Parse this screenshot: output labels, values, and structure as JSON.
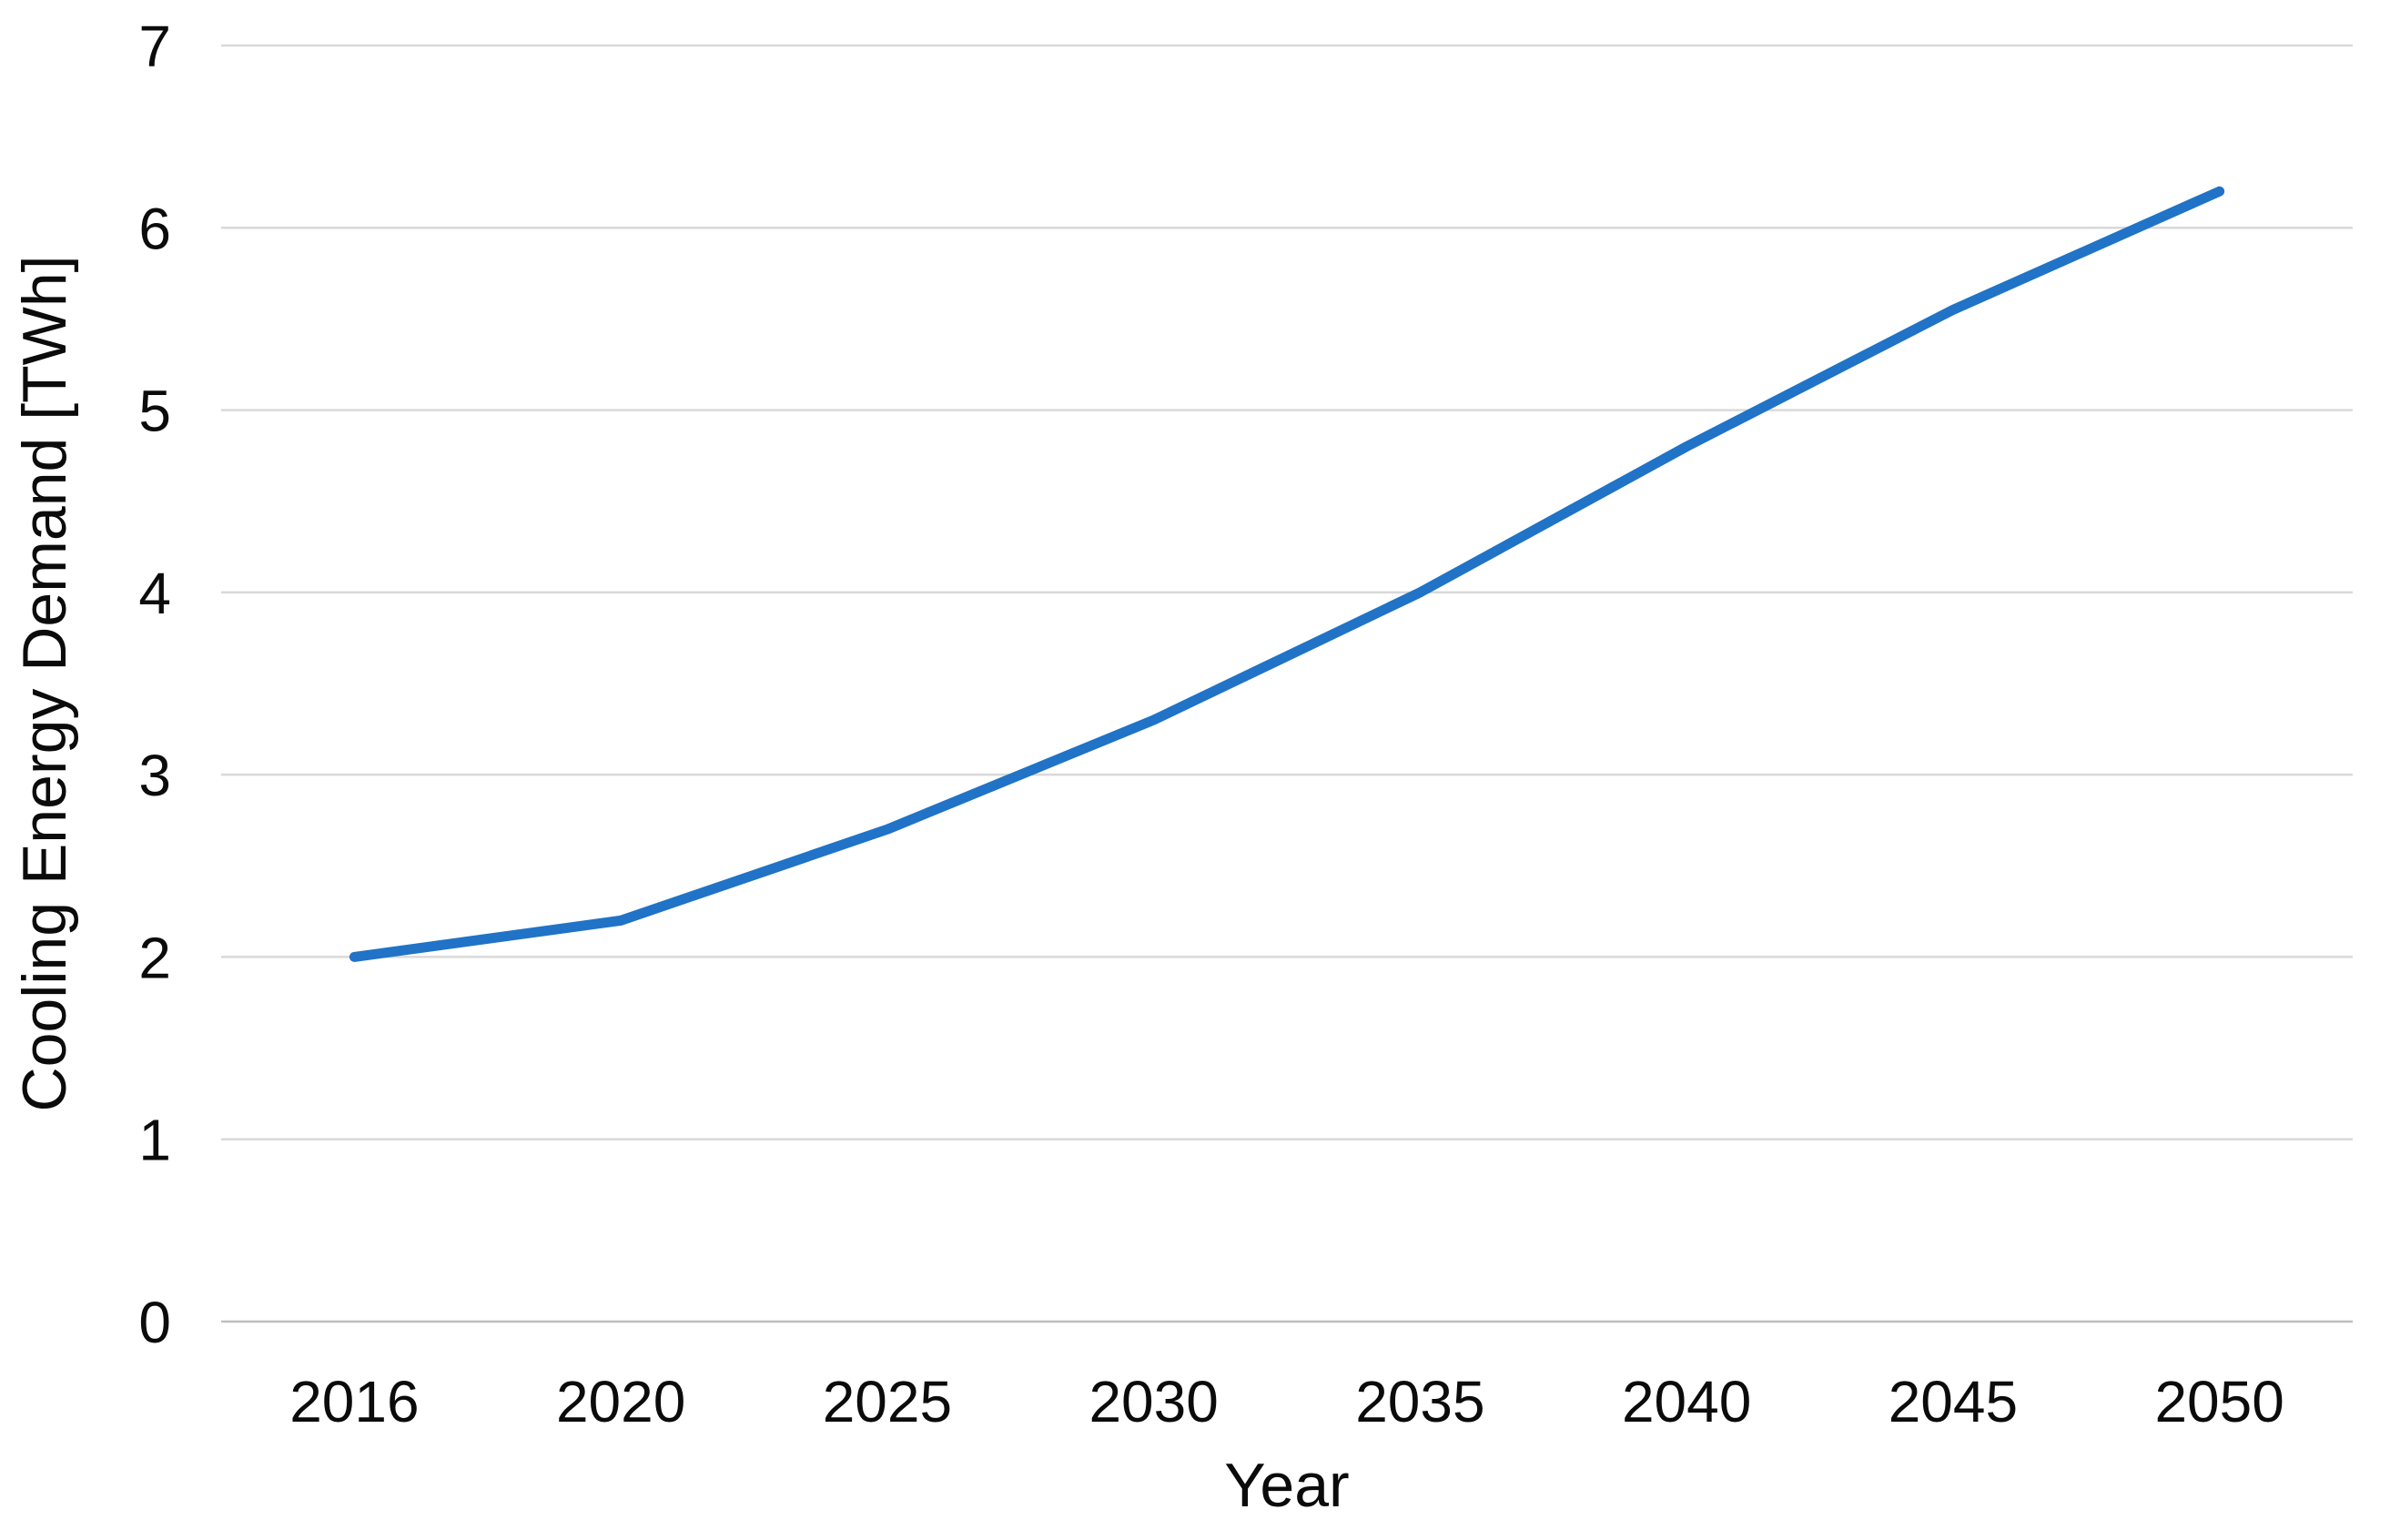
{
  "page": {
    "background": "#FFFFFF"
  },
  "chart_data": {
    "type": "line",
    "title": "",
    "categories": [
      "2016",
      "2020",
      "2025",
      "2030",
      "2035",
      "2040",
      "2045",
      "2050"
    ],
    "series": [
      {
        "name": "Cooling Energy Demand",
        "color": "#2073C6",
        "values": [
          2.0,
          2.2,
          2.7,
          3.3,
          4.0,
          4.8,
          5.55,
          6.2
        ]
      }
    ],
    "xlabel": "Year",
    "ylabel": "Cooling Energy Demand [TWh]",
    "ylim": [
      0,
      7
    ],
    "ytick_interval": 1,
    "yticks": [
      "0",
      "1",
      "2",
      "3",
      "4",
      "5",
      "6",
      "7"
    ],
    "grid": "horizontal",
    "legend": "none",
    "gridline_color": "#D9D9D9",
    "axisline_color": "#BFBFBF",
    "text_color": "#0B0B0B",
    "line_width": 11
  }
}
